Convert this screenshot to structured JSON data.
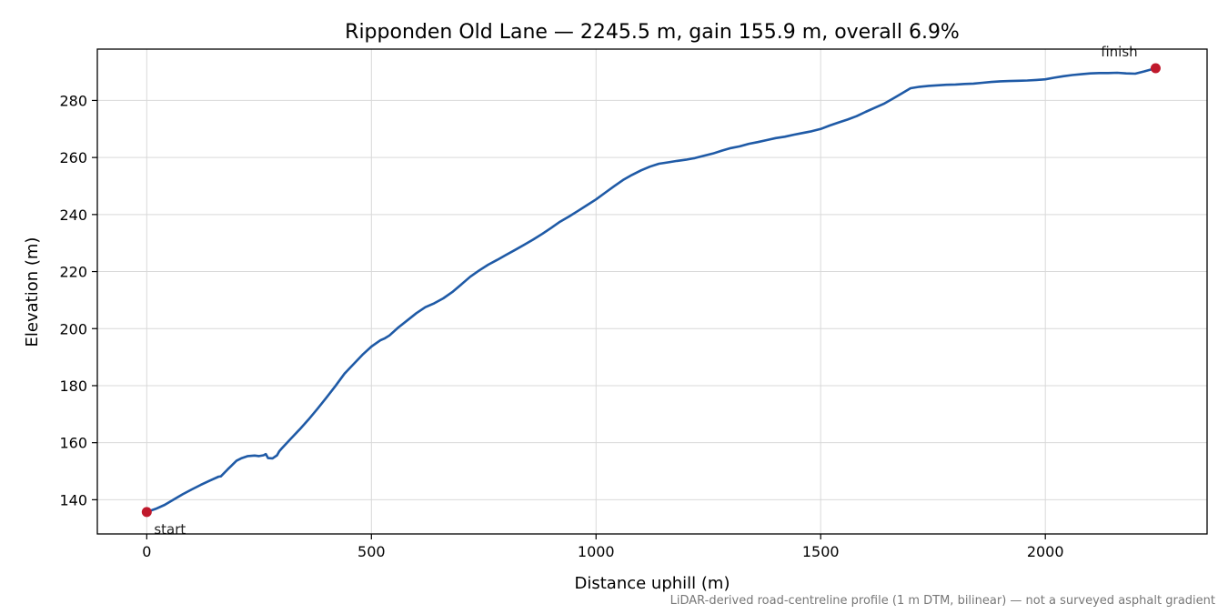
{
  "chart_data": {
    "type": "line",
    "title": "Ripponden Old Lane — 2245.5 m, gain 155.9 m, overall 6.9%",
    "xlabel": "Distance uphill (m)",
    "ylabel": "Elevation (m)",
    "xlim": [
      -110,
      2360
    ],
    "ylim": [
      128,
      298
    ],
    "xticks": [
      0,
      500,
      1000,
      1500,
      2000
    ],
    "yticks": [
      140,
      160,
      180,
      200,
      220,
      240,
      260,
      280
    ],
    "grid": true,
    "legend": "none",
    "colors": {
      "line": "#1f5aa6",
      "markers": "#c0192c"
    },
    "series": [
      {
        "x": [
          0,
          20,
          40,
          60,
          80,
          100,
          120,
          140,
          160,
          165,
          180,
          200,
          210,
          225,
          240,
          250,
          260,
          265,
          270,
          280,
          290,
          295,
          300,
          320,
          340,
          360,
          380,
          400,
          420,
          440,
          460,
          480,
          500,
          520,
          530,
          540,
          560,
          580,
          600,
          620,
          640,
          660,
          680,
          700,
          720,
          740,
          760,
          780,
          800,
          820,
          840,
          860,
          880,
          900,
          920,
          940,
          960,
          980,
          1000,
          1020,
          1040,
          1060,
          1080,
          1100,
          1120,
          1140,
          1160,
          1180,
          1200,
          1220,
          1240,
          1260,
          1280,
          1300,
          1320,
          1340,
          1360,
          1380,
          1400,
          1420,
          1440,
          1460,
          1480,
          1500,
          1520,
          1540,
          1560,
          1580,
          1600,
          1620,
          1640,
          1660,
          1680,
          1700,
          1720,
          1740,
          1760,
          1780,
          1800,
          1820,
          1840,
          1860,
          1880,
          1900,
          1920,
          1940,
          1960,
          1980,
          2000,
          2020,
          2040,
          2060,
          2080,
          2100,
          2120,
          2140,
          2160,
          2180,
          2200,
          2220,
          2245.5
        ],
        "y": [
          135.7,
          136.8,
          138.2,
          140.1,
          141.9,
          143.6,
          145.2,
          146.7,
          148.1,
          148.2,
          150.6,
          153.7,
          154.5,
          155.3,
          155.5,
          155.3,
          155.6,
          156.0,
          154.6,
          154.5,
          155.6,
          157.0,
          157.9,
          161.3,
          164.6,
          168.1,
          171.9,
          175.8,
          179.9,
          184.2,
          187.5,
          190.8,
          193.7,
          195.9,
          196.6,
          197.6,
          200.4,
          202.9,
          205.4,
          207.5,
          208.9,
          210.6,
          212.8,
          215.5,
          218.2,
          220.4,
          222.4,
          224.1,
          225.9,
          227.6,
          229.4,
          231.2,
          233.2,
          235.3,
          237.5,
          239.3,
          241.3,
          243.3,
          245.3,
          247.6,
          249.9,
          252.1,
          253.9,
          255.5,
          256.8,
          257.8,
          258.3,
          258.8,
          259.2,
          259.8,
          260.6,
          261.4,
          262.4,
          263.3,
          263.9,
          264.8,
          265.4,
          266.1,
          266.8,
          267.3,
          268.0,
          268.6,
          269.2,
          270.0,
          271.2,
          272.3,
          273.3,
          274.5,
          276.0,
          277.4,
          278.8,
          280.6,
          282.4,
          284.3,
          284.8,
          285.1,
          285.3,
          285.5,
          285.6,
          285.8,
          285.9,
          286.2,
          286.5,
          286.7,
          286.8,
          286.9,
          287.0,
          287.2,
          287.4,
          288.0,
          288.5,
          288.9,
          289.2,
          289.5,
          289.6,
          289.6,
          289.7,
          289.5,
          289.4,
          290.2,
          291.3
        ]
      }
    ],
    "annotations": [
      {
        "label": "start",
        "x": 0,
        "y": 135.7
      },
      {
        "label": "finish",
        "x": 2245.5,
        "y": 291.3
      }
    ],
    "footnote": "LiDAR-derived road-centreline profile (1 m DTM, bilinear) — not a surveyed asphalt gradient"
  }
}
